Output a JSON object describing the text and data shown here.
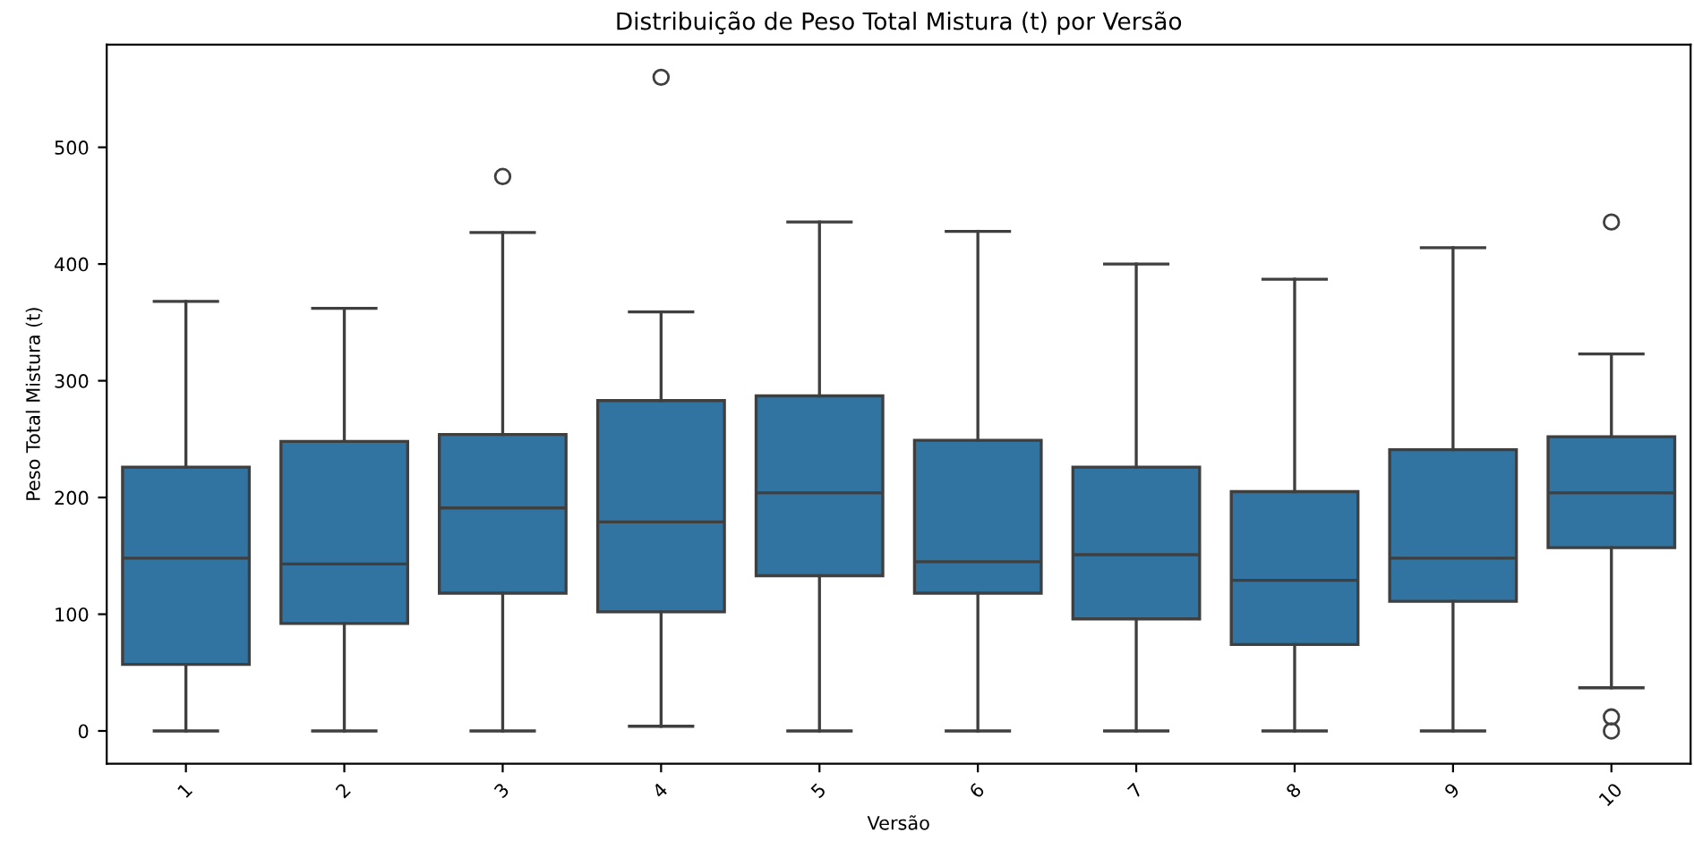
{
  "chart_data": {
    "type": "box",
    "title": "Distribuição de Peso Total Mistura (t) por Versão",
    "xlabel": "Versão",
    "ylabel": "Peso Total Mistura (t)",
    "categories": [
      "1",
      "2",
      "3",
      "4",
      "5",
      "6",
      "7",
      "8",
      "9",
      "10"
    ],
    "series": [
      {
        "color": "#3274a1",
        "boxes": [
          {
            "low": 0,
            "q1": 57,
            "median": 148,
            "q3": 226,
            "high": 368
          },
          {
            "low": 0,
            "q1": 92,
            "median": 143,
            "q3": 248,
            "high": 362
          },
          {
            "low": 0,
            "q1": 118,
            "median": 191,
            "q3": 254,
            "high": 427,
            "outliers": [
              475
            ]
          },
          {
            "low": 4,
            "q1": 102,
            "median": 179,
            "q3": 283,
            "high": 359,
            "outliers": [
              560
            ]
          },
          {
            "low": 0,
            "q1": 133,
            "median": 204,
            "q3": 287,
            "high": 436
          },
          {
            "low": 0,
            "q1": 118,
            "median": 145,
            "q3": 249,
            "high": 428
          },
          {
            "low": 0,
            "q1": 96,
            "median": 151,
            "q3": 226,
            "high": 400
          },
          {
            "low": 0,
            "q1": 74,
            "median": 129,
            "q3": 205,
            "high": 387
          },
          {
            "low": 0,
            "q1": 111,
            "median": 148,
            "q3": 241,
            "high": 414
          },
          {
            "low": 37,
            "q1": 157,
            "median": 204,
            "q3": 252,
            "high": 323,
            "outliers": [
              436,
              12,
              0
            ]
          }
        ]
      }
    ],
    "ylim": [
      -28,
      588
    ],
    "yticks": [
      0,
      100,
      200,
      300,
      400,
      500
    ],
    "grid": false
  }
}
